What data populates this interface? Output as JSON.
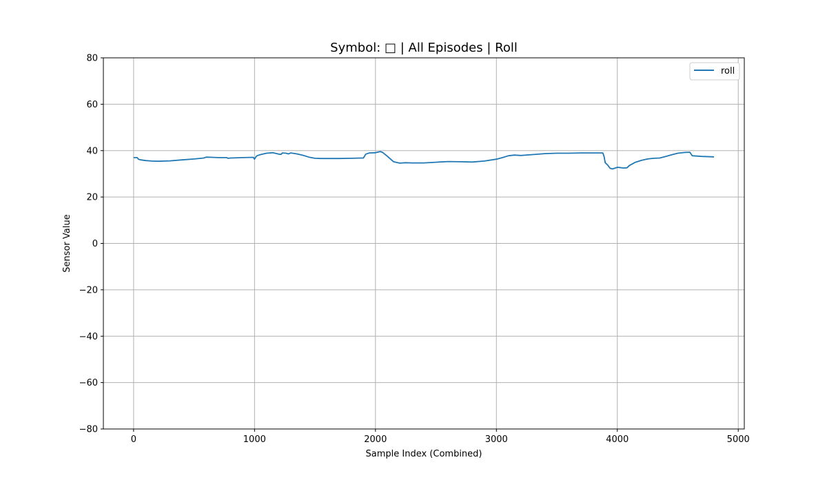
{
  "chart_data": {
    "type": "line",
    "title": "Symbol: □ | All Episodes | Roll",
    "xlabel": "Sample Index (Combined)",
    "ylabel": "Sensor Value",
    "xlim": [
      -250,
      5050
    ],
    "ylim": [
      -80,
      80
    ],
    "xticks": [
      0,
      1000,
      2000,
      3000,
      4000,
      5000
    ],
    "yticks": [
      -80,
      -60,
      -40,
      -20,
      0,
      20,
      40,
      60,
      80
    ],
    "grid": true,
    "legend_position": "top-right",
    "color": "#1f77b4",
    "series": [
      {
        "name": "roll",
        "x": [
          0,
          30,
          40,
          60,
          100,
          150,
          200,
          300,
          400,
          500,
          580,
          600,
          650,
          700,
          750,
          770,
          780,
          800,
          900,
          990,
          1000,
          1010,
          1020,
          1050,
          1100,
          1150,
          1200,
          1220,
          1230,
          1260,
          1280,
          1300,
          1350,
          1400,
          1450,
          1500,
          1550,
          1600,
          1700,
          1800,
          1880,
          1900,
          1920,
          1950,
          2000,
          2040,
          2060,
          2100,
          2150,
          2200,
          2250,
          2300,
          2400,
          2500,
          2600,
          2700,
          2800,
          2900,
          3000,
          3050,
          3100,
          3150,
          3200,
          3300,
          3400,
          3500,
          3600,
          3700,
          3800,
          3880,
          3890,
          3900,
          3920,
          3940,
          3960,
          4000,
          4020,
          4050,
          4080,
          4100,
          4150,
          4200,
          4250,
          4300,
          4350,
          4400,
          4450,
          4500,
          4560,
          4600,
          4620,
          4700,
          4800
        ],
        "y": [
          37.0,
          37.0,
          36.3,
          36.0,
          35.7,
          35.5,
          35.4,
          35.6,
          36.0,
          36.4,
          36.8,
          37.2,
          37.1,
          37.0,
          37.0,
          37.0,
          36.7,
          36.8,
          37.0,
          37.1,
          36.3,
          37.2,
          37.8,
          38.3,
          38.9,
          39.1,
          38.5,
          38.4,
          39.0,
          38.9,
          38.6,
          39.0,
          38.6,
          38.0,
          37.2,
          36.7,
          36.6,
          36.6,
          36.6,
          36.7,
          36.8,
          36.8,
          38.5,
          39.0,
          39.1,
          39.6,
          39.2,
          37.5,
          35.2,
          34.6,
          34.8,
          34.7,
          34.7,
          35.0,
          35.3,
          35.2,
          35.1,
          35.5,
          36.3,
          37.0,
          37.8,
          38.1,
          37.9,
          38.3,
          38.7,
          38.9,
          38.9,
          39.0,
          39.0,
          39.0,
          37.5,
          34.8,
          33.8,
          32.4,
          32.1,
          32.8,
          32.7,
          32.5,
          32.6,
          33.6,
          35.0,
          35.8,
          36.4,
          36.7,
          36.8,
          37.5,
          38.2,
          38.9,
          39.2,
          39.3,
          37.8,
          37.5,
          37.3
        ]
      }
    ]
  }
}
